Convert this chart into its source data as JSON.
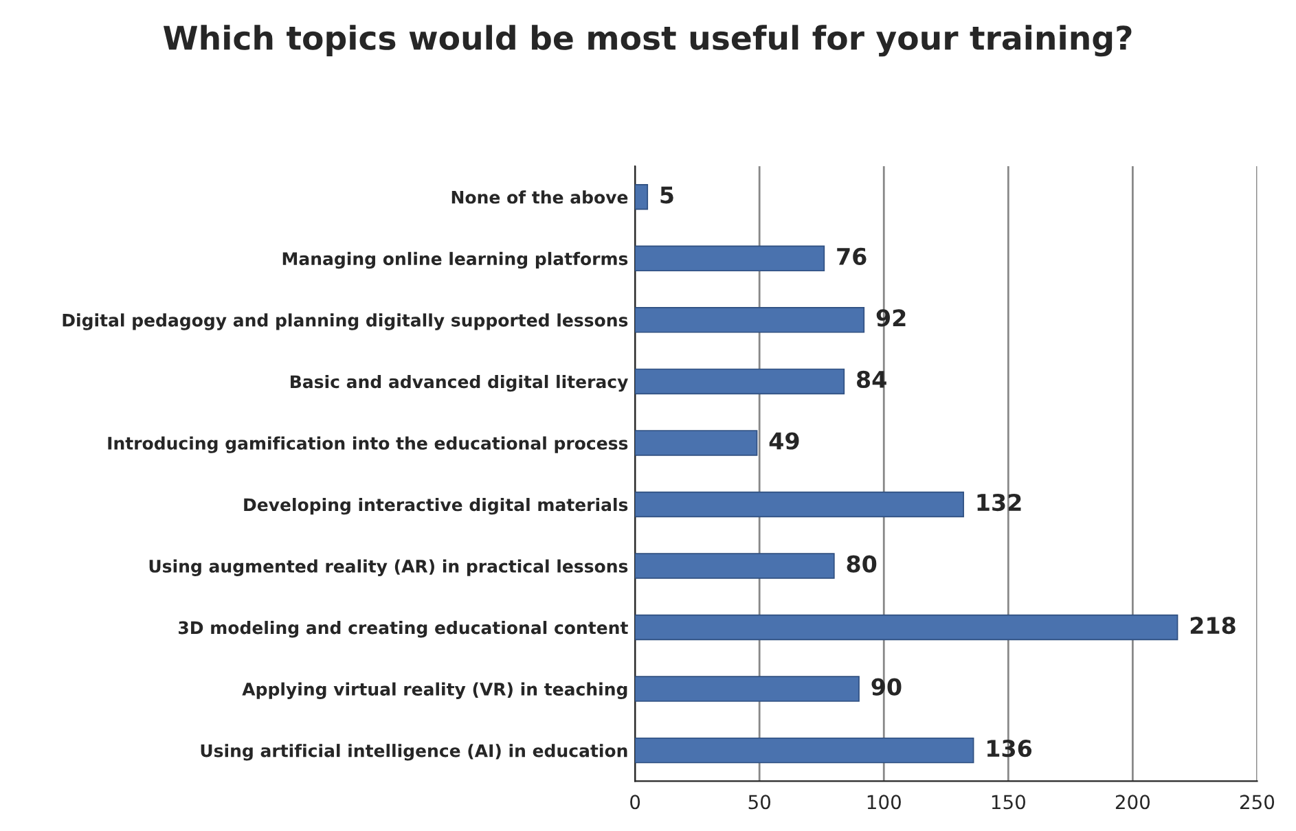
{
  "chart_data": {
    "type": "bar",
    "orientation": "horizontal",
    "title": "Which topics would be most useful for your training?",
    "categories": [
      "None of the above",
      "Managing online learning platforms",
      "Digital pedagogy and planning digitally supported lessons",
      "Basic and advanced digital literacy",
      "Introducing gamification into the educational process",
      "Developing interactive digital materials",
      "Using augmented reality (AR) in practical lessons",
      "3D modeling and creating educational content",
      "Applying virtual reality (VR) in teaching",
      "Using artificial intelligence (AI) in education"
    ],
    "values": [
      5,
      76,
      92,
      84,
      49,
      132,
      80,
      218,
      90,
      136
    ],
    "color": "#4a72ae",
    "xlim": [
      0,
      250
    ],
    "xticks": [
      0,
      50,
      100,
      150,
      200,
      250
    ],
    "grid": "x",
    "data_labels": true
  }
}
